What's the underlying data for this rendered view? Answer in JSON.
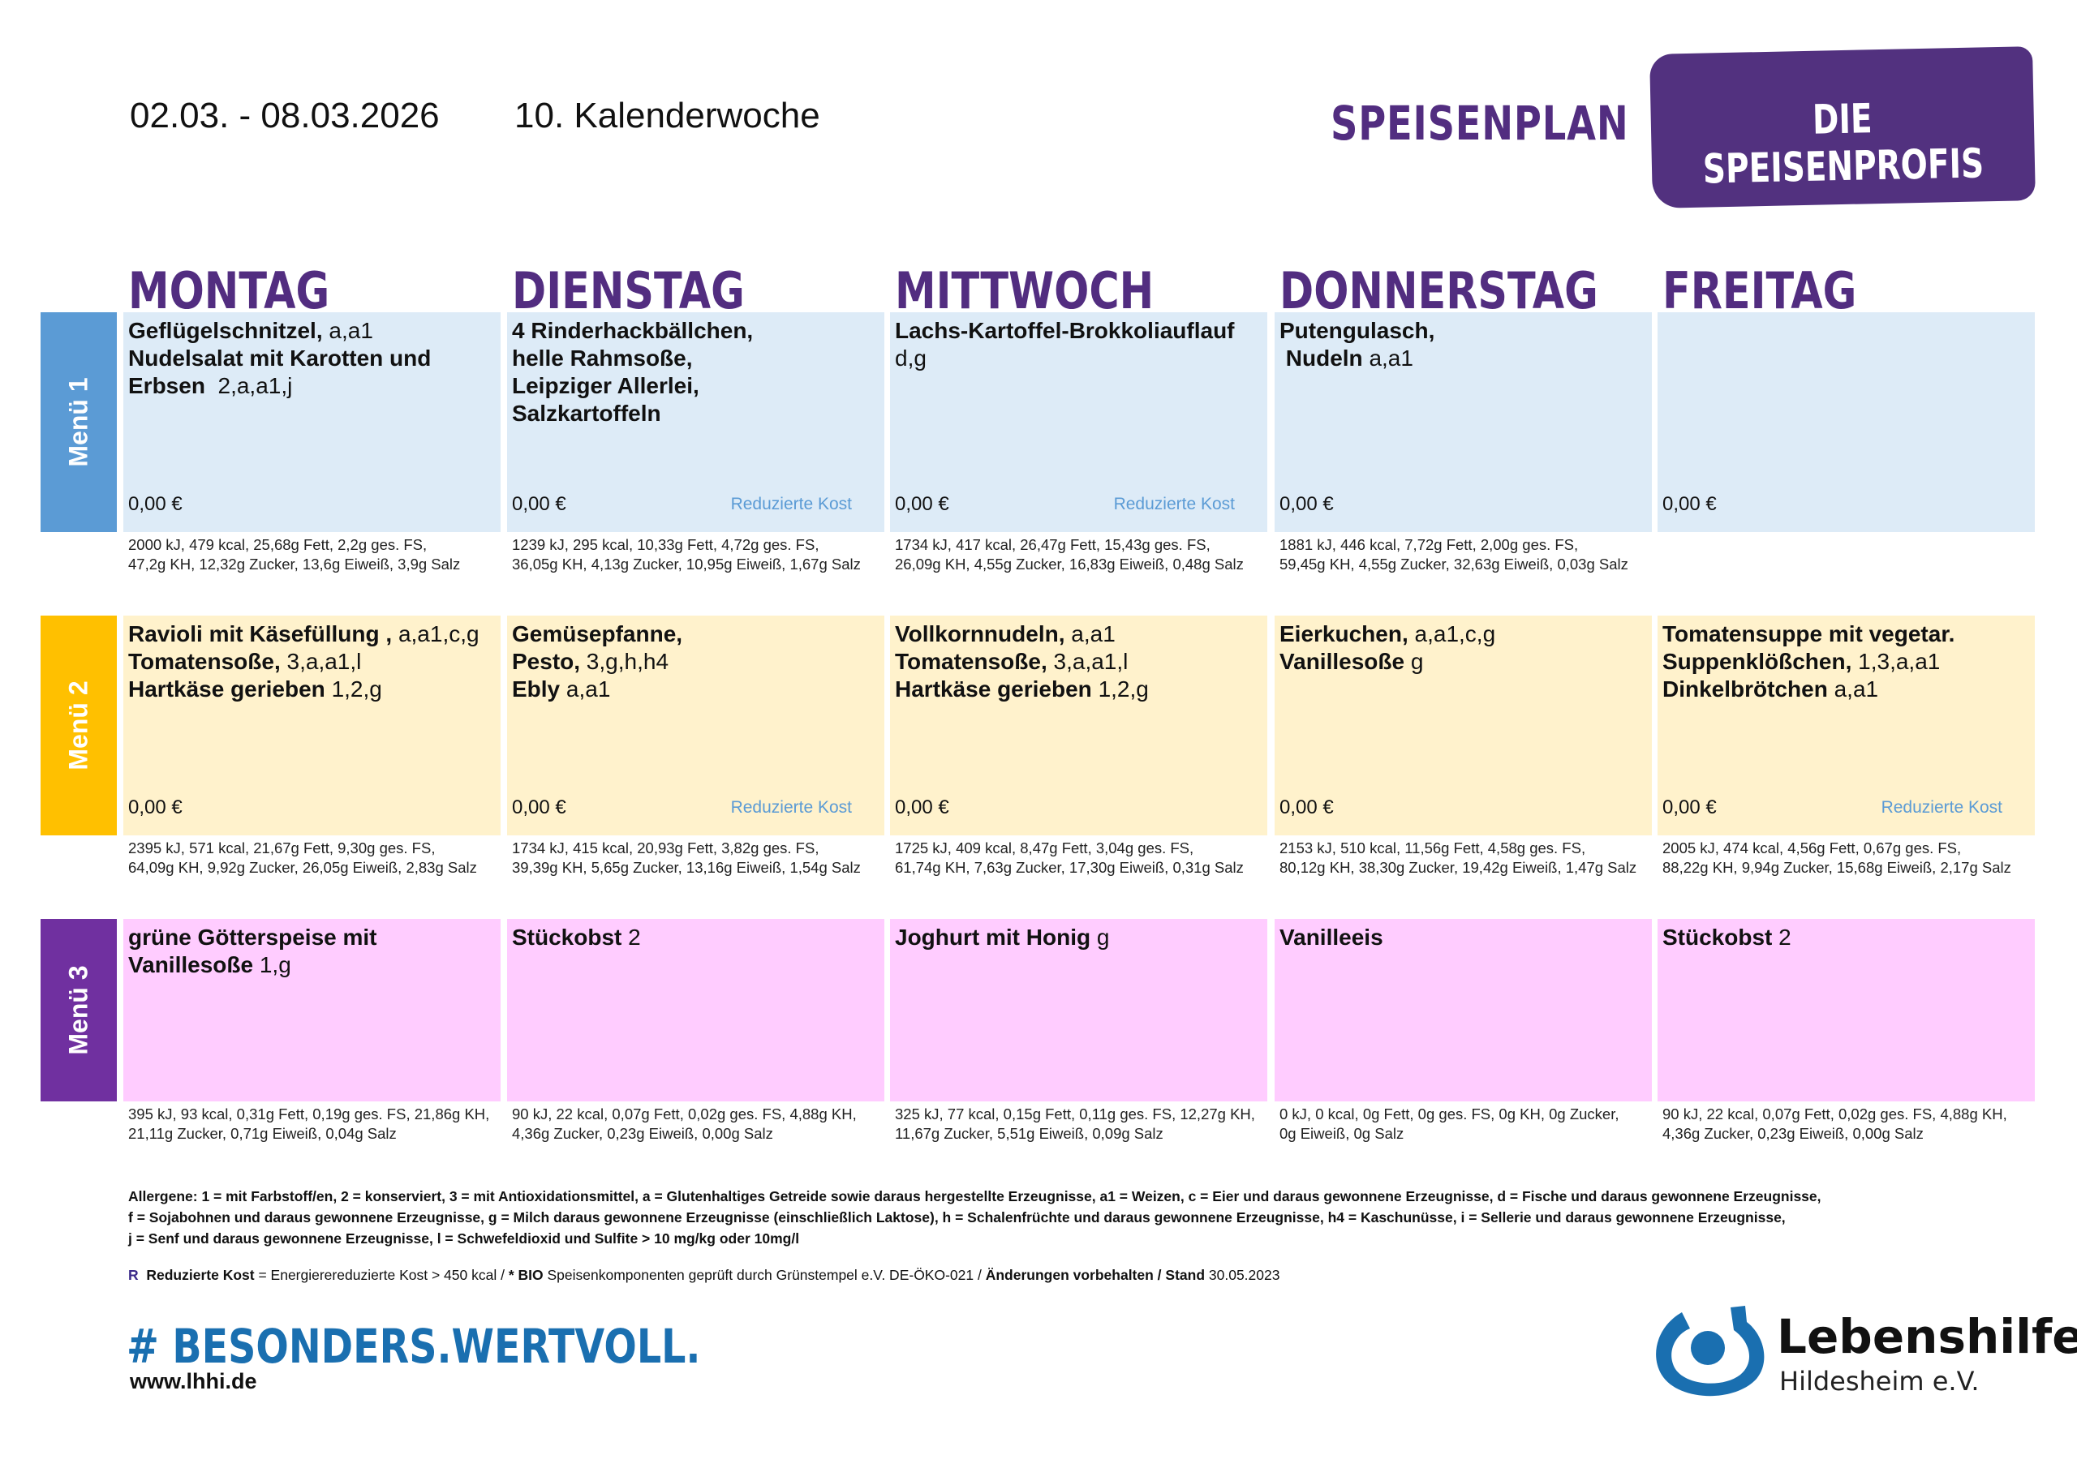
{
  "header": {
    "date_range": "02.03. - 08.03.2026",
    "week": "10. Kalenderwoche",
    "title": "SPEISENPLAN",
    "brand": "DIE SPEISENPROFIS"
  },
  "days": [
    "MONTAG",
    "DIENSTAG",
    "MITTWOCH",
    "DONNERSTAG",
    "FREITAG"
  ],
  "reduced_label": "Reduzierte Kost",
  "menus": [
    {
      "label": "Menü 1",
      "color": "#5b9bd5",
      "bg": "#ddebf7",
      "cells": [
        {
          "lines": [
            {
              "b": "Geflügelschnitzel,",
              "n": " a,a1"
            },
            {
              "b": "Nudelsalat mit Karotten und",
              "n": ""
            },
            {
              "b": "Erbsen",
              "n": "  2,a,a1,j"
            }
          ],
          "price": "0,00 €",
          "reduced": false,
          "nutrition": [
            "2000 kJ, 479 kcal, 25,68g Fett, 2,2g ges. FS,",
            "47,2g KH, 12,32g Zucker, 13,6g Eiweiß, 3,9g Salz"
          ]
        },
        {
          "lines": [
            {
              "b": "4 Rinderhackbällchen,",
              "n": ""
            },
            {
              "b": "helle Rahmsoße,",
              "n": ""
            },
            {
              "b": "Leipziger Allerlei,",
              "n": ""
            },
            {
              "b": "Salzkartoffeln",
              "n": ""
            }
          ],
          "price": "0,00 €",
          "reduced": true,
          "nutrition": [
            "1239 kJ, 295 kcal, 10,33g Fett, 4,72g ges. FS,",
            "36,05g KH, 4,13g Zucker, 10,95g Eiweiß, 1,67g Salz"
          ]
        },
        {
          "lines": [
            {
              "b": "Lachs-Kartoffel-Brokkoliauflauf",
              "n": ""
            },
            {
              "b": "",
              "n": "d,g"
            }
          ],
          "price": "0,00 €",
          "reduced": true,
          "nutrition": [
            "1734 kJ, 417 kcal, 26,47g Fett, 15,43g ges. FS,",
            "26,09g KH, 4,55g Zucker, 16,83g Eiweiß, 0,48g Salz"
          ]
        },
        {
          "lines": [
            {
              "b": "Putengulasch,",
              "n": ""
            },
            {
              "b": " Nudeln",
              "n": " a,a1"
            }
          ],
          "price": "0,00 €",
          "reduced": false,
          "nutrition": [
            "1881 kJ, 446 kcal, 7,72g Fett, 2,00g ges. FS,",
            "59,45g KH, 4,55g Zucker, 32,63g Eiweiß, 0,03g Salz"
          ]
        },
        {
          "lines": [],
          "price": "0,00 €",
          "reduced": false,
          "nutrition": []
        }
      ]
    },
    {
      "label": "Menü 2",
      "color": "#ffc000",
      "bg": "#fff2cc",
      "cells": [
        {
          "lines": [
            {
              "b": "Ravioli mit Käsefüllung ,",
              "n": " a,a1,c,g"
            },
            {
              "b": "Tomatensoße,",
              "n": " 3,a,a1,l"
            },
            {
              "b": "Hartkäse gerieben",
              "n": " 1,2,g"
            }
          ],
          "price": "0,00 €",
          "reduced": false,
          "nutrition": [
            "2395 kJ, 571 kcal, 21,67g Fett, 9,30g ges. FS,",
            "64,09g KH, 9,92g Zucker, 26,05g Eiweiß, 2,83g Salz"
          ]
        },
        {
          "lines": [
            {
              "b": "Gemüsepfanne,",
              "n": ""
            },
            {
              "b": "Pesto,",
              "n": " 3,g,h,h4"
            },
            {
              "b": "Ebly",
              "n": " a,a1"
            }
          ],
          "price": "0,00 €",
          "reduced": true,
          "nutrition": [
            "1734 kJ, 415 kcal, 20,93g Fett, 3,82g ges. FS,",
            "39,39g KH, 5,65g Zucker, 13,16g Eiweiß, 1,54g Salz"
          ]
        },
        {
          "lines": [
            {
              "b": "Vollkornnudeln,",
              "n": " a,a1"
            },
            {
              "b": "Tomatensoße,",
              "n": " 3,a,a1,l"
            },
            {
              "b": "Hartkäse gerieben",
              "n": " 1,2,g"
            }
          ],
          "price": "0,00 €",
          "reduced": false,
          "nutrition": [
            "1725 kJ, 409 kcal, 8,47g Fett, 3,04g ges. FS,",
            "61,74g KH, 7,63g Zucker, 17,30g Eiweiß, 0,31g Salz"
          ]
        },
        {
          "lines": [
            {
              "b": "Eierkuchen,",
              "n": " a,a1,c,g"
            },
            {
              "b": "Vanillesoße",
              "n": " g"
            }
          ],
          "price": "0,00 €",
          "reduced": false,
          "nutrition": [
            "2153 kJ, 510 kcal, 11,56g Fett, 4,58g ges. FS,",
            "80,12g KH, 38,30g Zucker, 19,42g Eiweiß, 1,47g Salz"
          ]
        },
        {
          "lines": [
            {
              "b": "Tomatensuppe mit vegetar.",
              "n": ""
            },
            {
              "b": "Suppenklößchen,",
              "n": " 1,3,a,a1"
            },
            {
              "b": "Dinkelbrötchen",
              "n": " a,a1"
            }
          ],
          "price": "0,00 €",
          "reduced": true,
          "nutrition": [
            "2005 kJ, 474 kcal, 4,56g Fett, 0,67g ges. FS,",
            "88,22g KH, 9,94g Zucker, 15,68g Eiweiß, 2,17g Salz"
          ]
        }
      ]
    },
    {
      "label": "Menü 3",
      "color": "#7030a0",
      "bg": "#ffccff",
      "cells": [
        {
          "lines": [
            {
              "b": "grüne Götterspeise mit",
              "n": ""
            },
            {
              "b": "Vanillesoße",
              "n": " 1,g"
            }
          ],
          "reduced": false,
          "nutrition": [
            "395 kJ, 93 kcal, 0,31g Fett, 0,19g ges. FS, 21,86g KH,",
            "21,11g Zucker, 0,71g Eiweiß, 0,04g Salz"
          ]
        },
        {
          "lines": [
            {
              "b": "Stückobst",
              "n": " 2"
            }
          ],
          "reduced": false,
          "nutrition": [
            "90 kJ, 22 kcal, 0,07g Fett, 0,02g ges. FS, 4,88g KH,",
            "4,36g Zucker, 0,23g Eiweiß, 0,00g Salz"
          ]
        },
        {
          "lines": [
            {
              "b": "Joghurt mit Honig",
              "n": " g"
            }
          ],
          "reduced": false,
          "nutrition": [
            "325 kJ, 77 kcal, 0,15g Fett, 0,11g ges. FS, 12,27g KH,",
            "11,67g Zucker, 5,51g Eiweiß, 0,09g Salz"
          ]
        },
        {
          "lines": [
            {
              "b": "Vanilleeis",
              "n": ""
            }
          ],
          "reduced": false,
          "nutrition": [
            "0 kJ, 0 kcal, 0g Fett, 0g ges. FS, 0g KH, 0g Zucker,",
            "0g Eiweiß, 0g Salz"
          ]
        },
        {
          "lines": [
            {
              "b": "Stückobst",
              "n": " 2"
            }
          ],
          "reduced": false,
          "nutrition": [
            "90 kJ, 22 kcal, 0,07g Fett, 0,02g ges. FS, 4,88g KH,",
            "4,36g Zucker, 0,23g Eiweiß, 0,00g Salz"
          ]
        }
      ]
    }
  ],
  "footer": {
    "allergens": [
      "Allergene: 1 = mit Farbstoff/en, 2 = konserviert, 3 = mit Antioxidationsmittel, a = Glutenhaltiges Getreide sowie daraus hergestellte Erzeugnisse, a1 = Weizen, c = Eier und daraus gewonnene Erzeugnisse, d = Fische und daraus gewonnene Erzeugnisse,",
      "f = Sojabohnen und daraus gewonnene Erzeugnisse, g = Milch daraus gewonnene Erzeugnisse (einschließlich Laktose), h = Schalenfrüchte und daraus gewonnene Erzeugnisse, h4 = Kaschunüsse, i = Sellerie und daraus gewonnene Erzeugnisse,",
      "j = Senf und daraus gewonnene Erzeugnisse, l = Schwefeldioxid und Sulfite > 10 mg/kg oder 10mg/l"
    ],
    "r_marker": "R",
    "r_bold": "Reduzierte Kost",
    "r_text": " = Energierereduzierte Kost > 450 kcal / ",
    "bio_bold": "* BIO",
    "bio_text": " Speisenkomponenten geprüft durch Grünstempel e.V. DE-ÖKO-021 / ",
    "changes_bold": "Änderungen vorbehalten / Stand",
    "stand_date": " 30.05.2023",
    "slogan": "# BESONDERS.WERTVOLL.",
    "website": "www.lhhi.de",
    "org_name": "Lebenshilfe",
    "org_sub": "Hildesheim e.V."
  },
  "colors": {
    "accent": "#522d80",
    "reduced": "#5b9bd5",
    "slogan": "#1a6fb0"
  }
}
